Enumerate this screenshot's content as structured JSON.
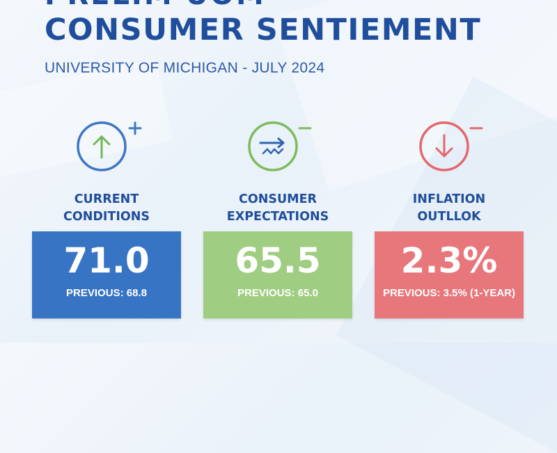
{
  "header": {
    "title_cropped": "PRELIM UOM",
    "title": "CONSUMER SENTIEMENT",
    "subtitle": "UNIVERSITY OF MICHIGAN - JULY 2024"
  },
  "metrics": [
    {
      "label_line1": "CURRENT",
      "label_line2": "CONDITIONS",
      "value": "71.0",
      "previous": "PREVIOUS: 68.8",
      "icon": "arrow-up-circle-icon",
      "badge": "+",
      "color": "#3874c4",
      "accent": "#3d77c4"
    },
    {
      "label_line1": "CONSUMER",
      "label_line2": "EXPECTATIONS",
      "value": "65.5",
      "previous": "PREVIOUS: 65.0",
      "icon": "trend-arrow-circle-icon",
      "badge": "-",
      "color": "#9fcd82",
      "accent": "#7dbb5e"
    },
    {
      "label_line1": "INFLATION",
      "label_line2": "OUTLLOK",
      "value": "2.3%",
      "previous": "PREVIOUS: 3.5% (1-YEAR)",
      "icon": "arrow-down-circle-icon",
      "badge": "-",
      "color": "#e8777b",
      "accent": "#e2686c"
    }
  ]
}
